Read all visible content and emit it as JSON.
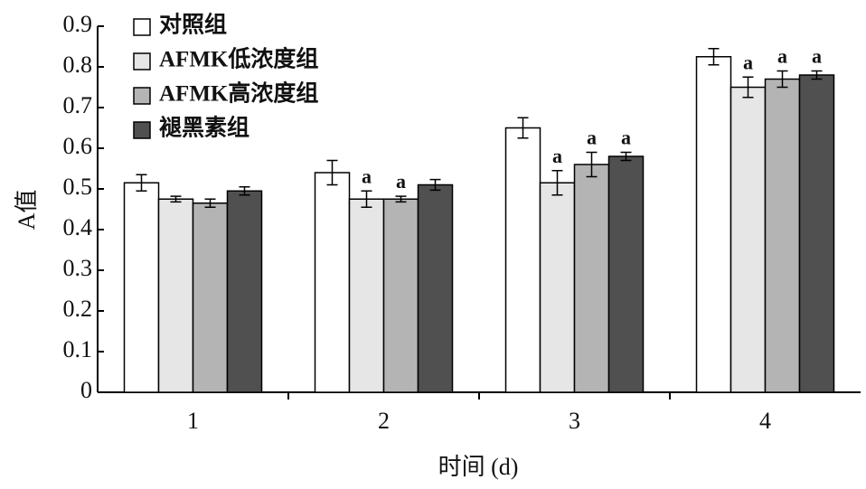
{
  "chart_data": {
    "type": "bar",
    "y_label": "A值",
    "x_label": "时间 (d)",
    "categories": [
      "1",
      "2",
      "3",
      "4"
    ],
    "series": [
      {
        "name": "对照组",
        "color": "#ffffff",
        "values": [
          0.515,
          0.54,
          0.65,
          0.825
        ],
        "errors": [
          0.02,
          0.03,
          0.025,
          0.02
        ],
        "annotations": [
          null,
          null,
          null,
          null
        ]
      },
      {
        "name": "AFMK低浓度组",
        "color": "#e6e6e6",
        "values": [
          0.475,
          0.475,
          0.515,
          0.75
        ],
        "errors": [
          0.007,
          0.02,
          0.03,
          0.025
        ],
        "annotations": [
          null,
          "a",
          "a",
          "a"
        ]
      },
      {
        "name": "AFMK高浓度组",
        "color": "#b4b4b4",
        "values": [
          0.465,
          0.475,
          0.56,
          0.77
        ],
        "errors": [
          0.01,
          0.007,
          0.03,
          0.02
        ],
        "annotations": [
          null,
          "a",
          "a",
          "a"
        ]
      },
      {
        "name": "褪黑素组",
        "color": "#505050",
        "values": [
          0.495,
          0.51,
          0.58,
          0.78
        ],
        "errors": [
          0.01,
          0.013,
          0.01,
          0.01
        ],
        "annotations": [
          null,
          null,
          "a",
          "a"
        ]
      }
    ],
    "ylim": [
      0,
      0.9
    ],
    "yticks": [
      0,
      0.1,
      0.2,
      0.3,
      0.4,
      0.5,
      0.6,
      0.7,
      0.8,
      0.9
    ],
    "grid": false
  }
}
